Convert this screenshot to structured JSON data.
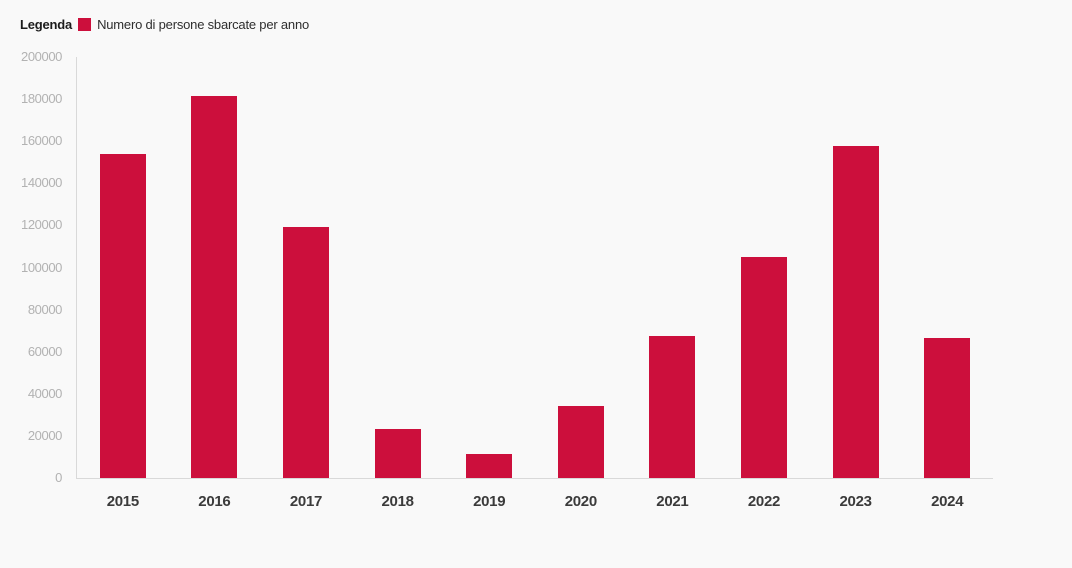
{
  "legend": {
    "title": "Legenda",
    "series_label": "Numero di persone sbarcate per anno"
  },
  "chart_data": {
    "type": "bar",
    "title": "",
    "xlabel": "",
    "ylabel": "",
    "categories": [
      "2015",
      "2016",
      "2017",
      "2018",
      "2019",
      "2020",
      "2021",
      "2022",
      "2023",
      "2024"
    ],
    "series": [
      {
        "name": "Numero di persone sbarcate per anno",
        "values": [
          153842,
          181436,
          119369,
          23370,
          11471,
          34154,
          67477,
          105131,
          157651,
          66317
        ]
      }
    ],
    "ylim": [
      0,
      200000
    ],
    "y_ticks": [
      0,
      20000,
      40000,
      60000,
      80000,
      100000,
      120000,
      140000,
      160000,
      180000,
      200000
    ],
    "grid": false,
    "legend_position": "top-left"
  },
  "style": {
    "bar_color": "#cc0f3c",
    "background_color": "#f9f9f9",
    "axis_line_color": "#d9d9d9",
    "y_tick_color": "#b2b2b2",
    "x_tick_color": "#3b3b3b"
  }
}
